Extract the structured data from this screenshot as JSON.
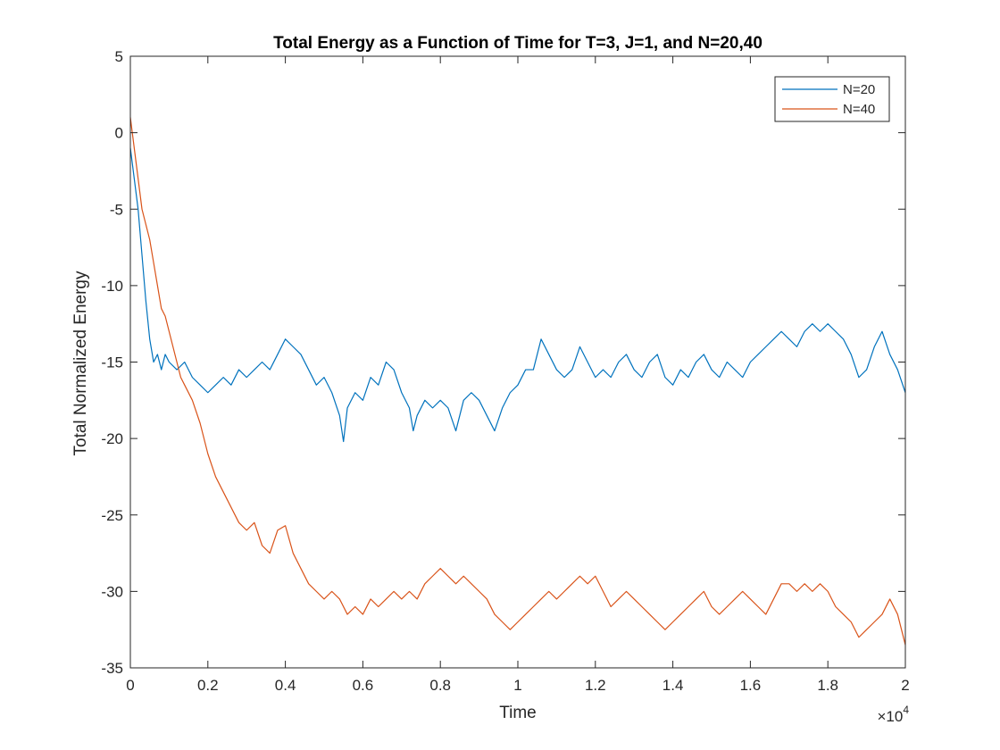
{
  "chart_data": {
    "type": "line",
    "title": "Total Energy as a Function of Time for T=3, J=1, and N=20,40",
    "xlabel": "Time",
    "ylabel": "Total Normalized Energy",
    "x_exponent_label": "×10",
    "x_exponent_power": "4",
    "xlim": [
      0,
      20000
    ],
    "ylim": [
      -35,
      5
    ],
    "x_ticks": [
      0,
      2000,
      4000,
      6000,
      8000,
      10000,
      12000,
      14000,
      16000,
      18000,
      20000
    ],
    "x_tick_labels": [
      "0",
      "0.2",
      "0.4",
      "0.6",
      "0.8",
      "1",
      "1.2",
      "1.4",
      "1.6",
      "1.8",
      "2"
    ],
    "y_ticks": [
      5,
      0,
      -5,
      -10,
      -15,
      -20,
      -25,
      -30,
      -35
    ],
    "y_tick_labels": [
      "5",
      "0",
      "-5",
      "-10",
      "-15",
      "-20",
      "-25",
      "-30",
      "-35"
    ],
    "grid": false,
    "legend_position": "top-right",
    "series": [
      {
        "name": "N=20",
        "color": "#0072BD",
        "points": [
          [
            0,
            -1
          ],
          [
            100,
            -3
          ],
          [
            200,
            -5
          ],
          [
            300,
            -8
          ],
          [
            400,
            -11
          ],
          [
            500,
            -13.5
          ],
          [
            600,
            -15
          ],
          [
            700,
            -14.5
          ],
          [
            800,
            -15.5
          ],
          [
            900,
            -14.5
          ],
          [
            1000,
            -15
          ],
          [
            1200,
            -15.5
          ],
          [
            1400,
            -15
          ],
          [
            1600,
            -16
          ],
          [
            1800,
            -16.5
          ],
          [
            2000,
            -17
          ],
          [
            2200,
            -16.5
          ],
          [
            2400,
            -16
          ],
          [
            2600,
            -16.5
          ],
          [
            2800,
            -15.5
          ],
          [
            3000,
            -16
          ],
          [
            3200,
            -15.5
          ],
          [
            3400,
            -15
          ],
          [
            3600,
            -15.5
          ],
          [
            3800,
            -14.5
          ],
          [
            4000,
            -13.5
          ],
          [
            4200,
            -14
          ],
          [
            4400,
            -14.5
          ],
          [
            4600,
            -15.5
          ],
          [
            4800,
            -16.5
          ],
          [
            5000,
            -16
          ],
          [
            5200,
            -17
          ],
          [
            5400,
            -18.5
          ],
          [
            5500,
            -20.2
          ],
          [
            5600,
            -18
          ],
          [
            5800,
            -17
          ],
          [
            6000,
            -17.5
          ],
          [
            6200,
            -16
          ],
          [
            6400,
            -16.5
          ],
          [
            6600,
            -15
          ],
          [
            6800,
            -15.5
          ],
          [
            7000,
            -17
          ],
          [
            7200,
            -18
          ],
          [
            7300,
            -19.5
          ],
          [
            7400,
            -18.5
          ],
          [
            7600,
            -17.5
          ],
          [
            7800,
            -18
          ],
          [
            8000,
            -17.5
          ],
          [
            8200,
            -18
          ],
          [
            8400,
            -19.5
          ],
          [
            8600,
            -17.5
          ],
          [
            8800,
            -17
          ],
          [
            9000,
            -17.5
          ],
          [
            9200,
            -18.5
          ],
          [
            9400,
            -19.5
          ],
          [
            9600,
            -18
          ],
          [
            9800,
            -17
          ],
          [
            10000,
            -16.5
          ],
          [
            10200,
            -15.5
          ],
          [
            10400,
            -15.5
          ],
          [
            10600,
            -13.5
          ],
          [
            10800,
            -14.5
          ],
          [
            11000,
            -15.5
          ],
          [
            11200,
            -16
          ],
          [
            11400,
            -15.5
          ],
          [
            11600,
            -14
          ],
          [
            11800,
            -15
          ],
          [
            12000,
            -16
          ],
          [
            12200,
            -15.5
          ],
          [
            12400,
            -16
          ],
          [
            12600,
            -15
          ],
          [
            12800,
            -14.5
          ],
          [
            13000,
            -15.5
          ],
          [
            13200,
            -16
          ],
          [
            13400,
            -15
          ],
          [
            13600,
            -14.5
          ],
          [
            13800,
            -16
          ],
          [
            14000,
            -16.5
          ],
          [
            14200,
            -15.5
          ],
          [
            14400,
            -16
          ],
          [
            14600,
            -15
          ],
          [
            14800,
            -14.5
          ],
          [
            15000,
            -15.5
          ],
          [
            15200,
            -16
          ],
          [
            15400,
            -15
          ],
          [
            15600,
            -15.5
          ],
          [
            15800,
            -16
          ],
          [
            16000,
            -15
          ],
          [
            16200,
            -14.5
          ],
          [
            16400,
            -14
          ],
          [
            16600,
            -13.5
          ],
          [
            16800,
            -13
          ],
          [
            17000,
            -13.5
          ],
          [
            17200,
            -14
          ],
          [
            17400,
            -13
          ],
          [
            17600,
            -12.5
          ],
          [
            17800,
            -13
          ],
          [
            18000,
            -12.5
          ],
          [
            18200,
            -13
          ],
          [
            18400,
            -13.5
          ],
          [
            18600,
            -14.5
          ],
          [
            18800,
            -16
          ],
          [
            19000,
            -15.5
          ],
          [
            19200,
            -14
          ],
          [
            19400,
            -13
          ],
          [
            19600,
            -14.5
          ],
          [
            19800,
            -15.5
          ],
          [
            20000,
            -17
          ]
        ]
      },
      {
        "name": "N=40",
        "color": "#D95319",
        "points": [
          [
            0,
            1
          ],
          [
            100,
            -1
          ],
          [
            200,
            -3
          ],
          [
            300,
            -5
          ],
          [
            400,
            -6
          ],
          [
            500,
            -7
          ],
          [
            600,
            -8.5
          ],
          [
            700,
            -10
          ],
          [
            800,
            -11.5
          ],
          [
            900,
            -12
          ],
          [
            1000,
            -13
          ],
          [
            1100,
            -14
          ],
          [
            1200,
            -15
          ],
          [
            1300,
            -16
          ],
          [
            1400,
            -16.5
          ],
          [
            1600,
            -17.5
          ],
          [
            1800,
            -19
          ],
          [
            2000,
            -21
          ],
          [
            2200,
            -22.5
          ],
          [
            2400,
            -23.5
          ],
          [
            2600,
            -24.5
          ],
          [
            2800,
            -25.5
          ],
          [
            3000,
            -26
          ],
          [
            3200,
            -25.5
          ],
          [
            3400,
            -27
          ],
          [
            3600,
            -27.5
          ],
          [
            3800,
            -26
          ],
          [
            4000,
            -25.7
          ],
          [
            4200,
            -27.5
          ],
          [
            4400,
            -28.5
          ],
          [
            4600,
            -29.5
          ],
          [
            4800,
            -30
          ],
          [
            5000,
            -30.5
          ],
          [
            5200,
            -30
          ],
          [
            5400,
            -30.5
          ],
          [
            5600,
            -31.5
          ],
          [
            5800,
            -31
          ],
          [
            6000,
            -31.5
          ],
          [
            6200,
            -30.5
          ],
          [
            6400,
            -31
          ],
          [
            6600,
            -30.5
          ],
          [
            6800,
            -30
          ],
          [
            7000,
            -30.5
          ],
          [
            7200,
            -30
          ],
          [
            7400,
            -30.5
          ],
          [
            7600,
            -29.5
          ],
          [
            7800,
            -29
          ],
          [
            8000,
            -28.5
          ],
          [
            8200,
            -29
          ],
          [
            8400,
            -29.5
          ],
          [
            8600,
            -29
          ],
          [
            8800,
            -29.5
          ],
          [
            9000,
            -30
          ],
          [
            9200,
            -30.5
          ],
          [
            9400,
            -31.5
          ],
          [
            9600,
            -32
          ],
          [
            9800,
            -32.5
          ],
          [
            10000,
            -32
          ],
          [
            10200,
            -31.5
          ],
          [
            10400,
            -31
          ],
          [
            10600,
            -30.5
          ],
          [
            10800,
            -30
          ],
          [
            11000,
            -30.5
          ],
          [
            11200,
            -30
          ],
          [
            11400,
            -29.5
          ],
          [
            11600,
            -29
          ],
          [
            11800,
            -29.5
          ],
          [
            12000,
            -29
          ],
          [
            12200,
            -30
          ],
          [
            12400,
            -31
          ],
          [
            12600,
            -30.5
          ],
          [
            12800,
            -30
          ],
          [
            13000,
            -30.5
          ],
          [
            13200,
            -31
          ],
          [
            13400,
            -31.5
          ],
          [
            13600,
            -32
          ],
          [
            13800,
            -32.5
          ],
          [
            14000,
            -32
          ],
          [
            14200,
            -31.5
          ],
          [
            14400,
            -31
          ],
          [
            14600,
            -30.5
          ],
          [
            14800,
            -30
          ],
          [
            15000,
            -31
          ],
          [
            15200,
            -31.5
          ],
          [
            15400,
            -31
          ],
          [
            15600,
            -30.5
          ],
          [
            15800,
            -30
          ],
          [
            16000,
            -30.5
          ],
          [
            16200,
            -31
          ],
          [
            16400,
            -31.5
          ],
          [
            16600,
            -30.5
          ],
          [
            16800,
            -29.5
          ],
          [
            17000,
            -29.5
          ],
          [
            17200,
            -30
          ],
          [
            17400,
            -29.5
          ],
          [
            17600,
            -30
          ],
          [
            17800,
            -29.5
          ],
          [
            18000,
            -30
          ],
          [
            18200,
            -31
          ],
          [
            18400,
            -31.5
          ],
          [
            18600,
            -32
          ],
          [
            18800,
            -33
          ],
          [
            19000,
            -32.5
          ],
          [
            19200,
            -32
          ],
          [
            19400,
            -31.5
          ],
          [
            19600,
            -30.5
          ],
          [
            19800,
            -31.5
          ],
          [
            20000,
            -33.5
          ]
        ]
      }
    ]
  }
}
